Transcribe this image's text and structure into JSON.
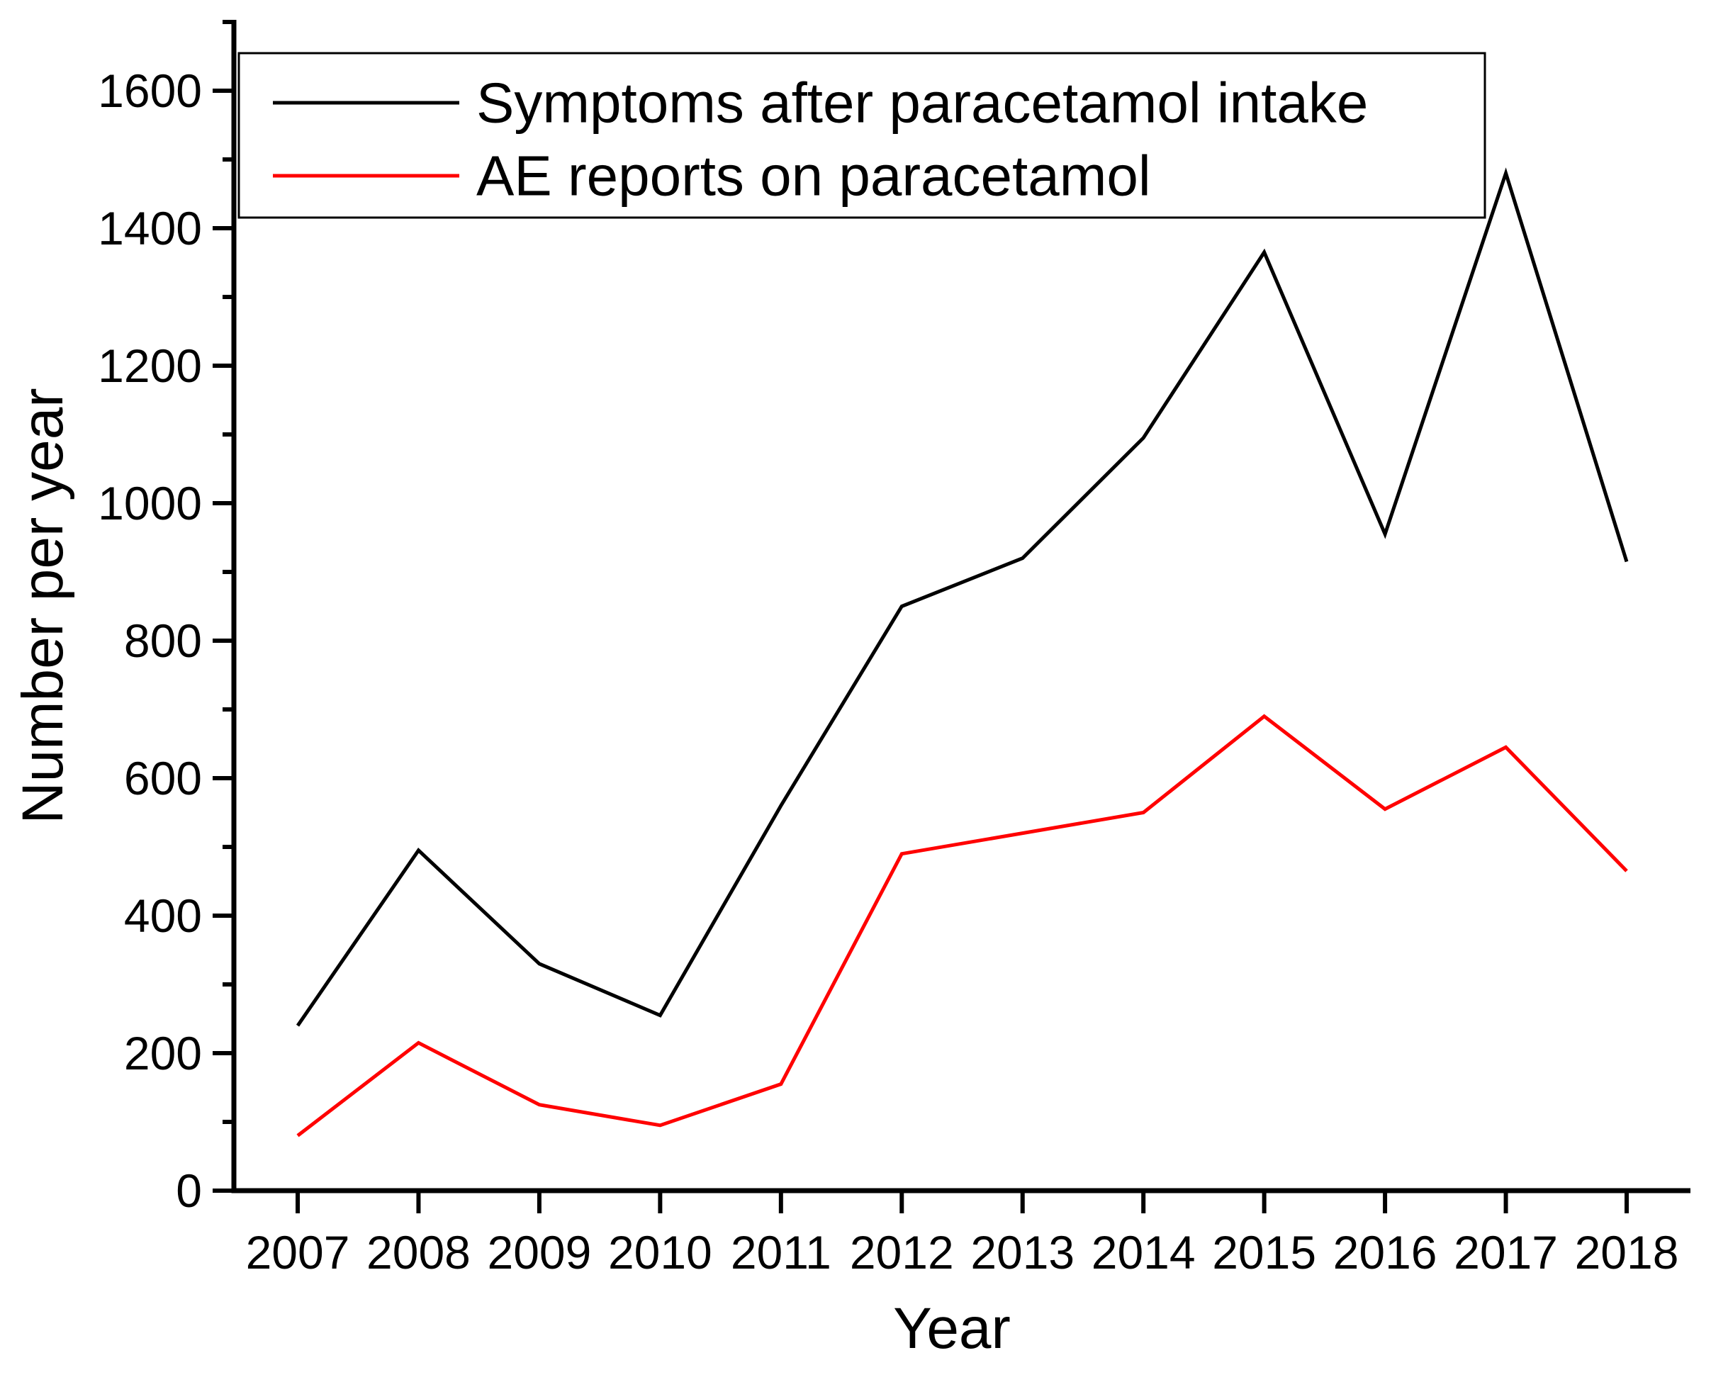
{
  "chart_data": {
    "type": "line",
    "title": "",
    "xlabel": "Year",
    "ylabel": "Number per year",
    "x_labels": [
      "2007",
      "2008",
      "2009",
      "2010",
      "2011",
      "2012",
      "2013",
      "2014",
      "2015",
      "2016",
      "2017",
      "2018"
    ],
    "y_tick_labels": [
      "0",
      "200",
      "400",
      "600",
      "800",
      "1000",
      "1200",
      "1400",
      "1600"
    ],
    "ylim": [
      0,
      1700
    ],
    "y_major_step": 200,
    "y_minor_step": 100,
    "grid": false,
    "legend_position": "top-left-inside",
    "axis_color": "#000000",
    "series": [
      {
        "name": "Symptoms after paracetamol intake",
        "color": "#000000",
        "values": [
          240,
          495,
          330,
          255,
          560,
          850,
          920,
          1095,
          1365,
          955,
          1480,
          915
        ]
      },
      {
        "name": "AE reports on paracetamol",
        "color": "#ff0000",
        "values": [
          80,
          215,
          125,
          95,
          155,
          490,
          520,
          550,
          690,
          555,
          645,
          465
        ]
      }
    ]
  }
}
